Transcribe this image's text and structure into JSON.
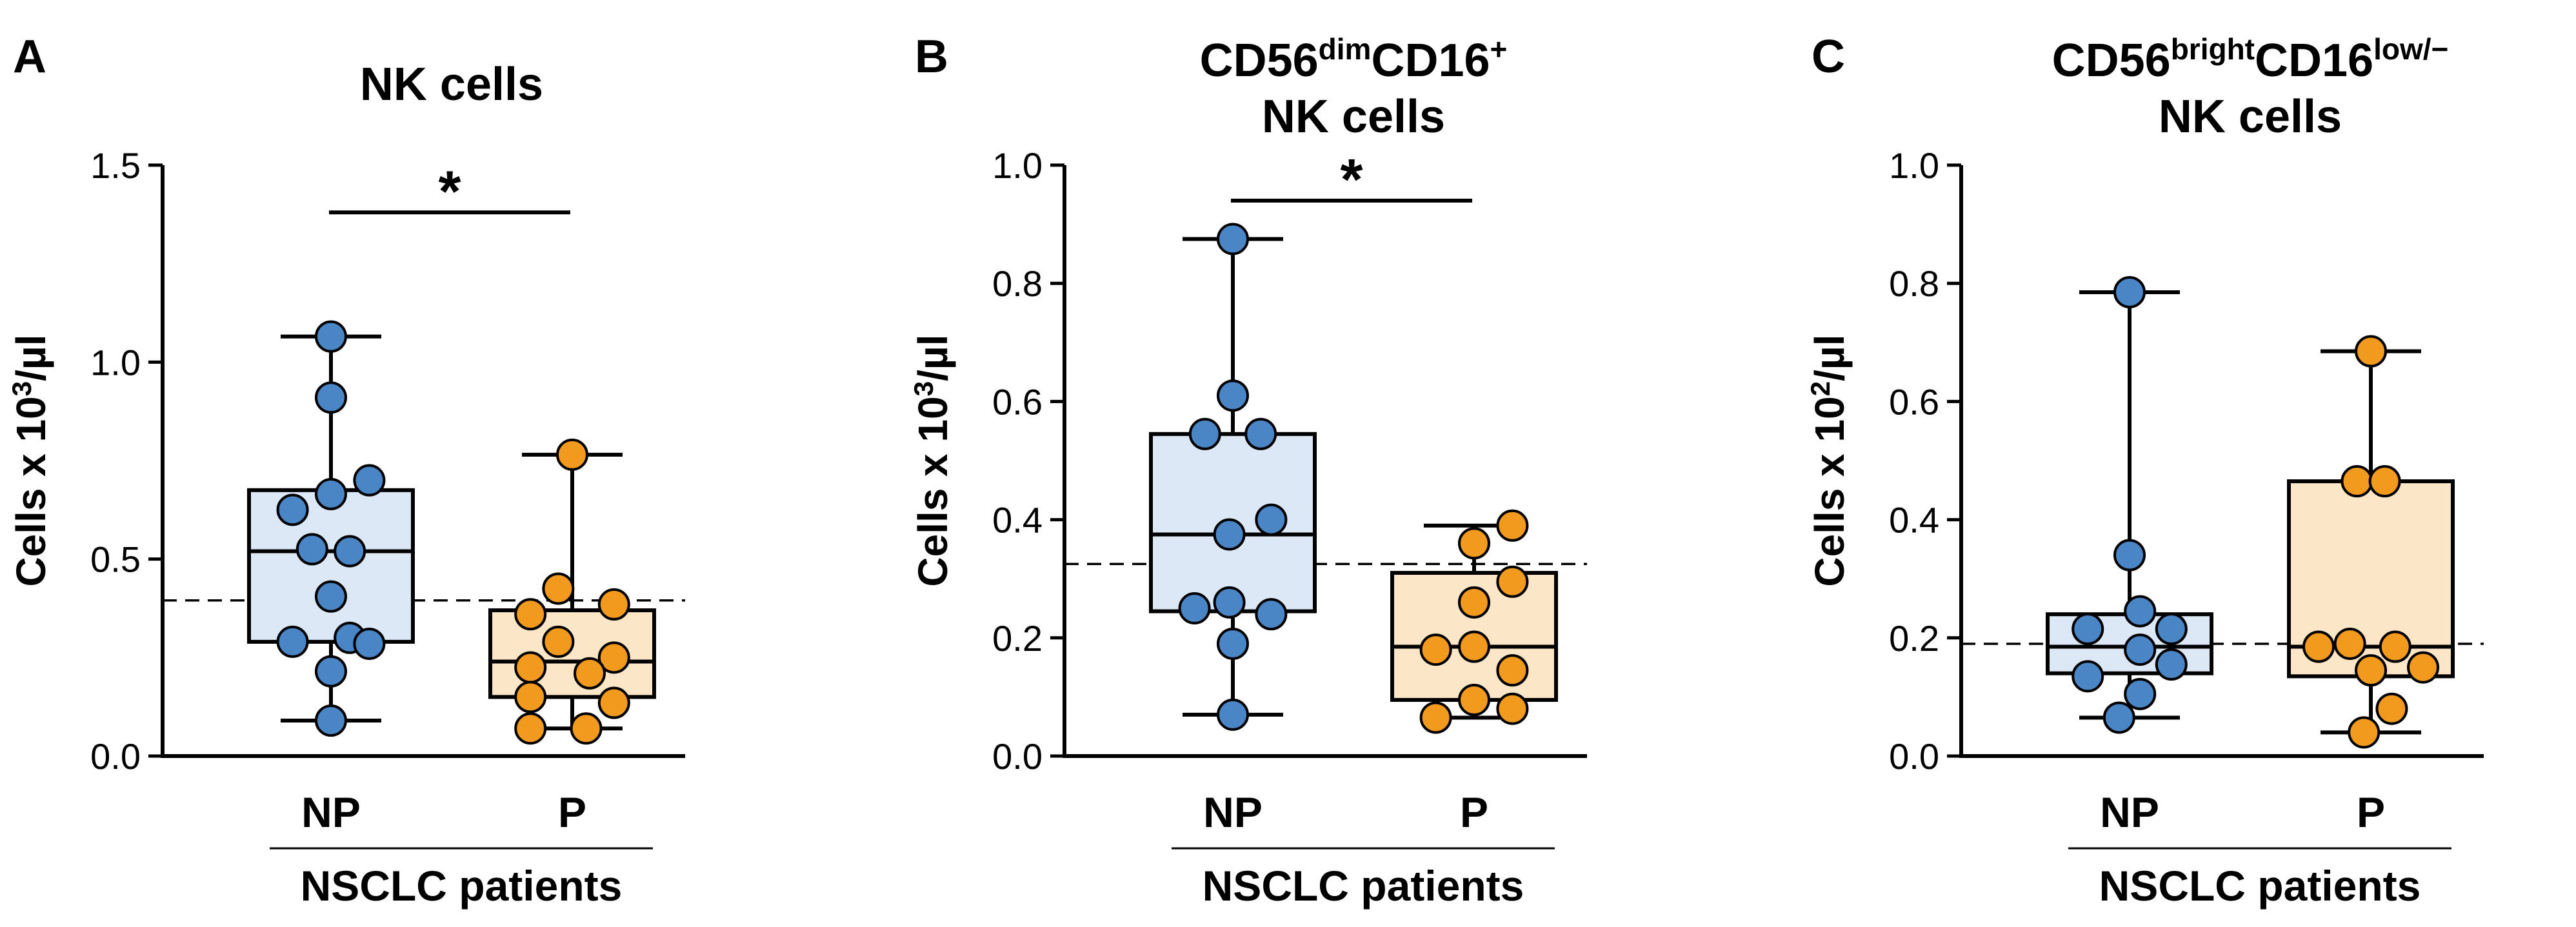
{
  "colors": {
    "np_fill": "#4A86C6",
    "np_box": "#DCE8F5",
    "p_fill": "#F29A1E",
    "p_box": "#FCE6C8",
    "stroke": "#000000"
  },
  "chart_data": [
    {
      "type": "box",
      "panel_letter": "A",
      "title": {
        "lines": [
          {
            "text": "NK cells"
          }
        ]
      },
      "ylabel": {
        "pre": "Cells x 10",
        "sup": "3",
        "post": "/µl"
      },
      "ylim": [
        0,
        1.5
      ],
      "yticks": [
        0.0,
        0.5,
        1.0,
        1.5
      ],
      "tick_labels": [
        "0.0",
        "0.5",
        "1.0",
        "1.5"
      ],
      "categories": [
        "NP",
        "P"
      ],
      "group_label": "NSCLC patients",
      "reference_line": 0.395,
      "significance": {
        "label": "*",
        "from": 0,
        "to": 1,
        "y": 1.38
      },
      "series": [
        {
          "name": "NP",
          "box": {
            "min": 0.09,
            "q1": 0.29,
            "median": 0.52,
            "q3": 0.675,
            "max": 1.065
          },
          "points": [
            {
              "v": 1.065,
              "o": 0.0
            },
            {
              "v": 0.91,
              "o": 0.0
            },
            {
              "v": 0.7,
              "o": 0.55
            },
            {
              "v": 0.665,
              "o": 0.0
            },
            {
              "v": 0.625,
              "o": -0.55
            },
            {
              "v": 0.525,
              "o": -0.27
            },
            {
              "v": 0.52,
              "o": 0.27
            },
            {
              "v": 0.405,
              "o": 0.0
            },
            {
              "v": 0.3,
              "o": 0.27
            },
            {
              "v": 0.29,
              "o": -0.55
            },
            {
              "v": 0.285,
              "o": 0.55
            },
            {
              "v": 0.215,
              "o": 0.0
            },
            {
              "v": 0.09,
              "o": 0.0
            }
          ]
        },
        {
          "name": "P",
          "box": {
            "min": 0.07,
            "q1": 0.15,
            "median": 0.24,
            "q3": 0.37,
            "max": 0.765
          },
          "points": [
            {
              "v": 0.765,
              "o": 0.0
            },
            {
              "v": 0.425,
              "o": -0.2
            },
            {
              "v": 0.385,
              "o": 0.6
            },
            {
              "v": 0.36,
              "o": -0.6
            },
            {
              "v": 0.29,
              "o": -0.2
            },
            {
              "v": 0.25,
              "o": 0.6
            },
            {
              "v": 0.225,
              "o": -0.6
            },
            {
              "v": 0.21,
              "o": 0.25
            },
            {
              "v": 0.15,
              "o": -0.6
            },
            {
              "v": 0.135,
              "o": 0.6
            },
            {
              "v": 0.07,
              "o": -0.6
            },
            {
              "v": 0.07,
              "o": 0.2
            }
          ]
        }
      ]
    },
    {
      "type": "box",
      "panel_letter": "B",
      "title": {
        "lines": [
          {
            "segments": [
              {
                "text": "CD56"
              },
              {
                "text": "dim",
                "sup": true
              },
              {
                "text": "CD16"
              },
              {
                "text": "+",
                "sup": true
              }
            ]
          },
          {
            "text": "NK cells"
          }
        ]
      },
      "ylabel": {
        "pre": "Cells x 10",
        "sup": "3",
        "post": "/µl"
      },
      "ylim": [
        0,
        1.0
      ],
      "yticks": [
        0.0,
        0.2,
        0.4,
        0.6,
        0.8,
        1.0
      ],
      "tick_labels": [
        "0.0",
        "0.2",
        "0.4",
        "0.6",
        "0.8",
        "1.0"
      ],
      "categories": [
        "NP",
        "P"
      ],
      "group_label": "NSCLC patients",
      "reference_line": 0.325,
      "significance": {
        "label": "*",
        "from": 0,
        "to": 1,
        "y": 0.94
      },
      "series": [
        {
          "name": "NP",
          "box": {
            "min": 0.07,
            "q1": 0.245,
            "median": 0.375,
            "q3": 0.545,
            "max": 0.875
          },
          "points": [
            {
              "v": 0.875,
              "o": 0.0
            },
            {
              "v": 0.61,
              "o": 0.0
            },
            {
              "v": 0.545,
              "o": -0.4
            },
            {
              "v": 0.545,
              "o": 0.4
            },
            {
              "v": 0.4,
              "o": 0.55
            },
            {
              "v": 0.375,
              "o": -0.05
            },
            {
              "v": 0.26,
              "o": -0.05
            },
            {
              "v": 0.25,
              "o": -0.55
            },
            {
              "v": 0.24,
              "o": 0.55
            },
            {
              "v": 0.19,
              "o": 0.0
            },
            {
              "v": 0.07,
              "o": 0.0
            }
          ]
        },
        {
          "name": "P",
          "box": {
            "min": 0.065,
            "q1": 0.095,
            "median": 0.185,
            "q3": 0.31,
            "max": 0.39
          },
          "points": [
            {
              "v": 0.39,
              "o": 0.55
            },
            {
              "v": 0.36,
              "o": 0.0
            },
            {
              "v": 0.295,
              "o": 0.55
            },
            {
              "v": 0.26,
              "o": 0.0
            },
            {
              "v": 0.185,
              "o": 0.0
            },
            {
              "v": 0.18,
              "o": -0.55
            },
            {
              "v": 0.145,
              "o": 0.55
            },
            {
              "v": 0.095,
              "o": 0.0
            },
            {
              "v": 0.08,
              "o": 0.55
            },
            {
              "v": 0.065,
              "o": -0.55
            }
          ]
        }
      ]
    },
    {
      "type": "box",
      "panel_letter": "C",
      "title": {
        "lines": [
          {
            "segments": [
              {
                "text": "CD56"
              },
              {
                "text": "bright",
                "sup": true
              },
              {
                "text": "CD16"
              },
              {
                "text": "low/−",
                "sup": true
              }
            ]
          },
          {
            "text": "NK cells"
          }
        ]
      },
      "ylabel": {
        "pre": "Cells x 10",
        "sup": "2",
        "post": "/µl"
      },
      "ylim": [
        0,
        1.0
      ],
      "yticks": [
        0.0,
        0.2,
        0.4,
        0.6,
        0.8,
        1.0
      ],
      "tick_labels": [
        "0.0",
        "0.2",
        "0.4",
        "0.6",
        "0.8",
        "1.0"
      ],
      "categories": [
        "NP",
        "P"
      ],
      "group_label": "NSCLC patients",
      "reference_line": 0.19,
      "significance": null,
      "series": [
        {
          "name": "NP",
          "box": {
            "min": 0.065,
            "q1": 0.14,
            "median": 0.185,
            "q3": 0.24,
            "max": 0.785
          },
          "points": [
            {
              "v": 0.785,
              "o": 0.0
            },
            {
              "v": 0.34,
              "o": 0.0
            },
            {
              "v": 0.245,
              "o": 0.15
            },
            {
              "v": 0.215,
              "o": 0.6
            },
            {
              "v": 0.215,
              "o": -0.6
            },
            {
              "v": 0.18,
              "o": 0.15
            },
            {
              "v": 0.155,
              "o": 0.6
            },
            {
              "v": 0.135,
              "o": -0.6
            },
            {
              "v": 0.105,
              "o": 0.15
            },
            {
              "v": 0.065,
              "o": -0.15
            }
          ]
        },
        {
          "name": "P",
          "box": {
            "min": 0.04,
            "q1": 0.135,
            "median": 0.185,
            "q3": 0.465,
            "max": 0.685
          },
          "points": [
            {
              "v": 0.685,
              "o": 0.0
            },
            {
              "v": 0.465,
              "o": -0.2
            },
            {
              "v": 0.465,
              "o": 0.2
            },
            {
              "v": 0.19,
              "o": -0.3
            },
            {
              "v": 0.185,
              "o": 0.35
            },
            {
              "v": 0.185,
              "o": -0.75
            },
            {
              "v": 0.15,
              "o": 0.75
            },
            {
              "v": 0.145,
              "o": 0.0
            },
            {
              "v": 0.08,
              "o": 0.3
            },
            {
              "v": 0.04,
              "o": -0.1
            }
          ]
        }
      ]
    }
  ]
}
